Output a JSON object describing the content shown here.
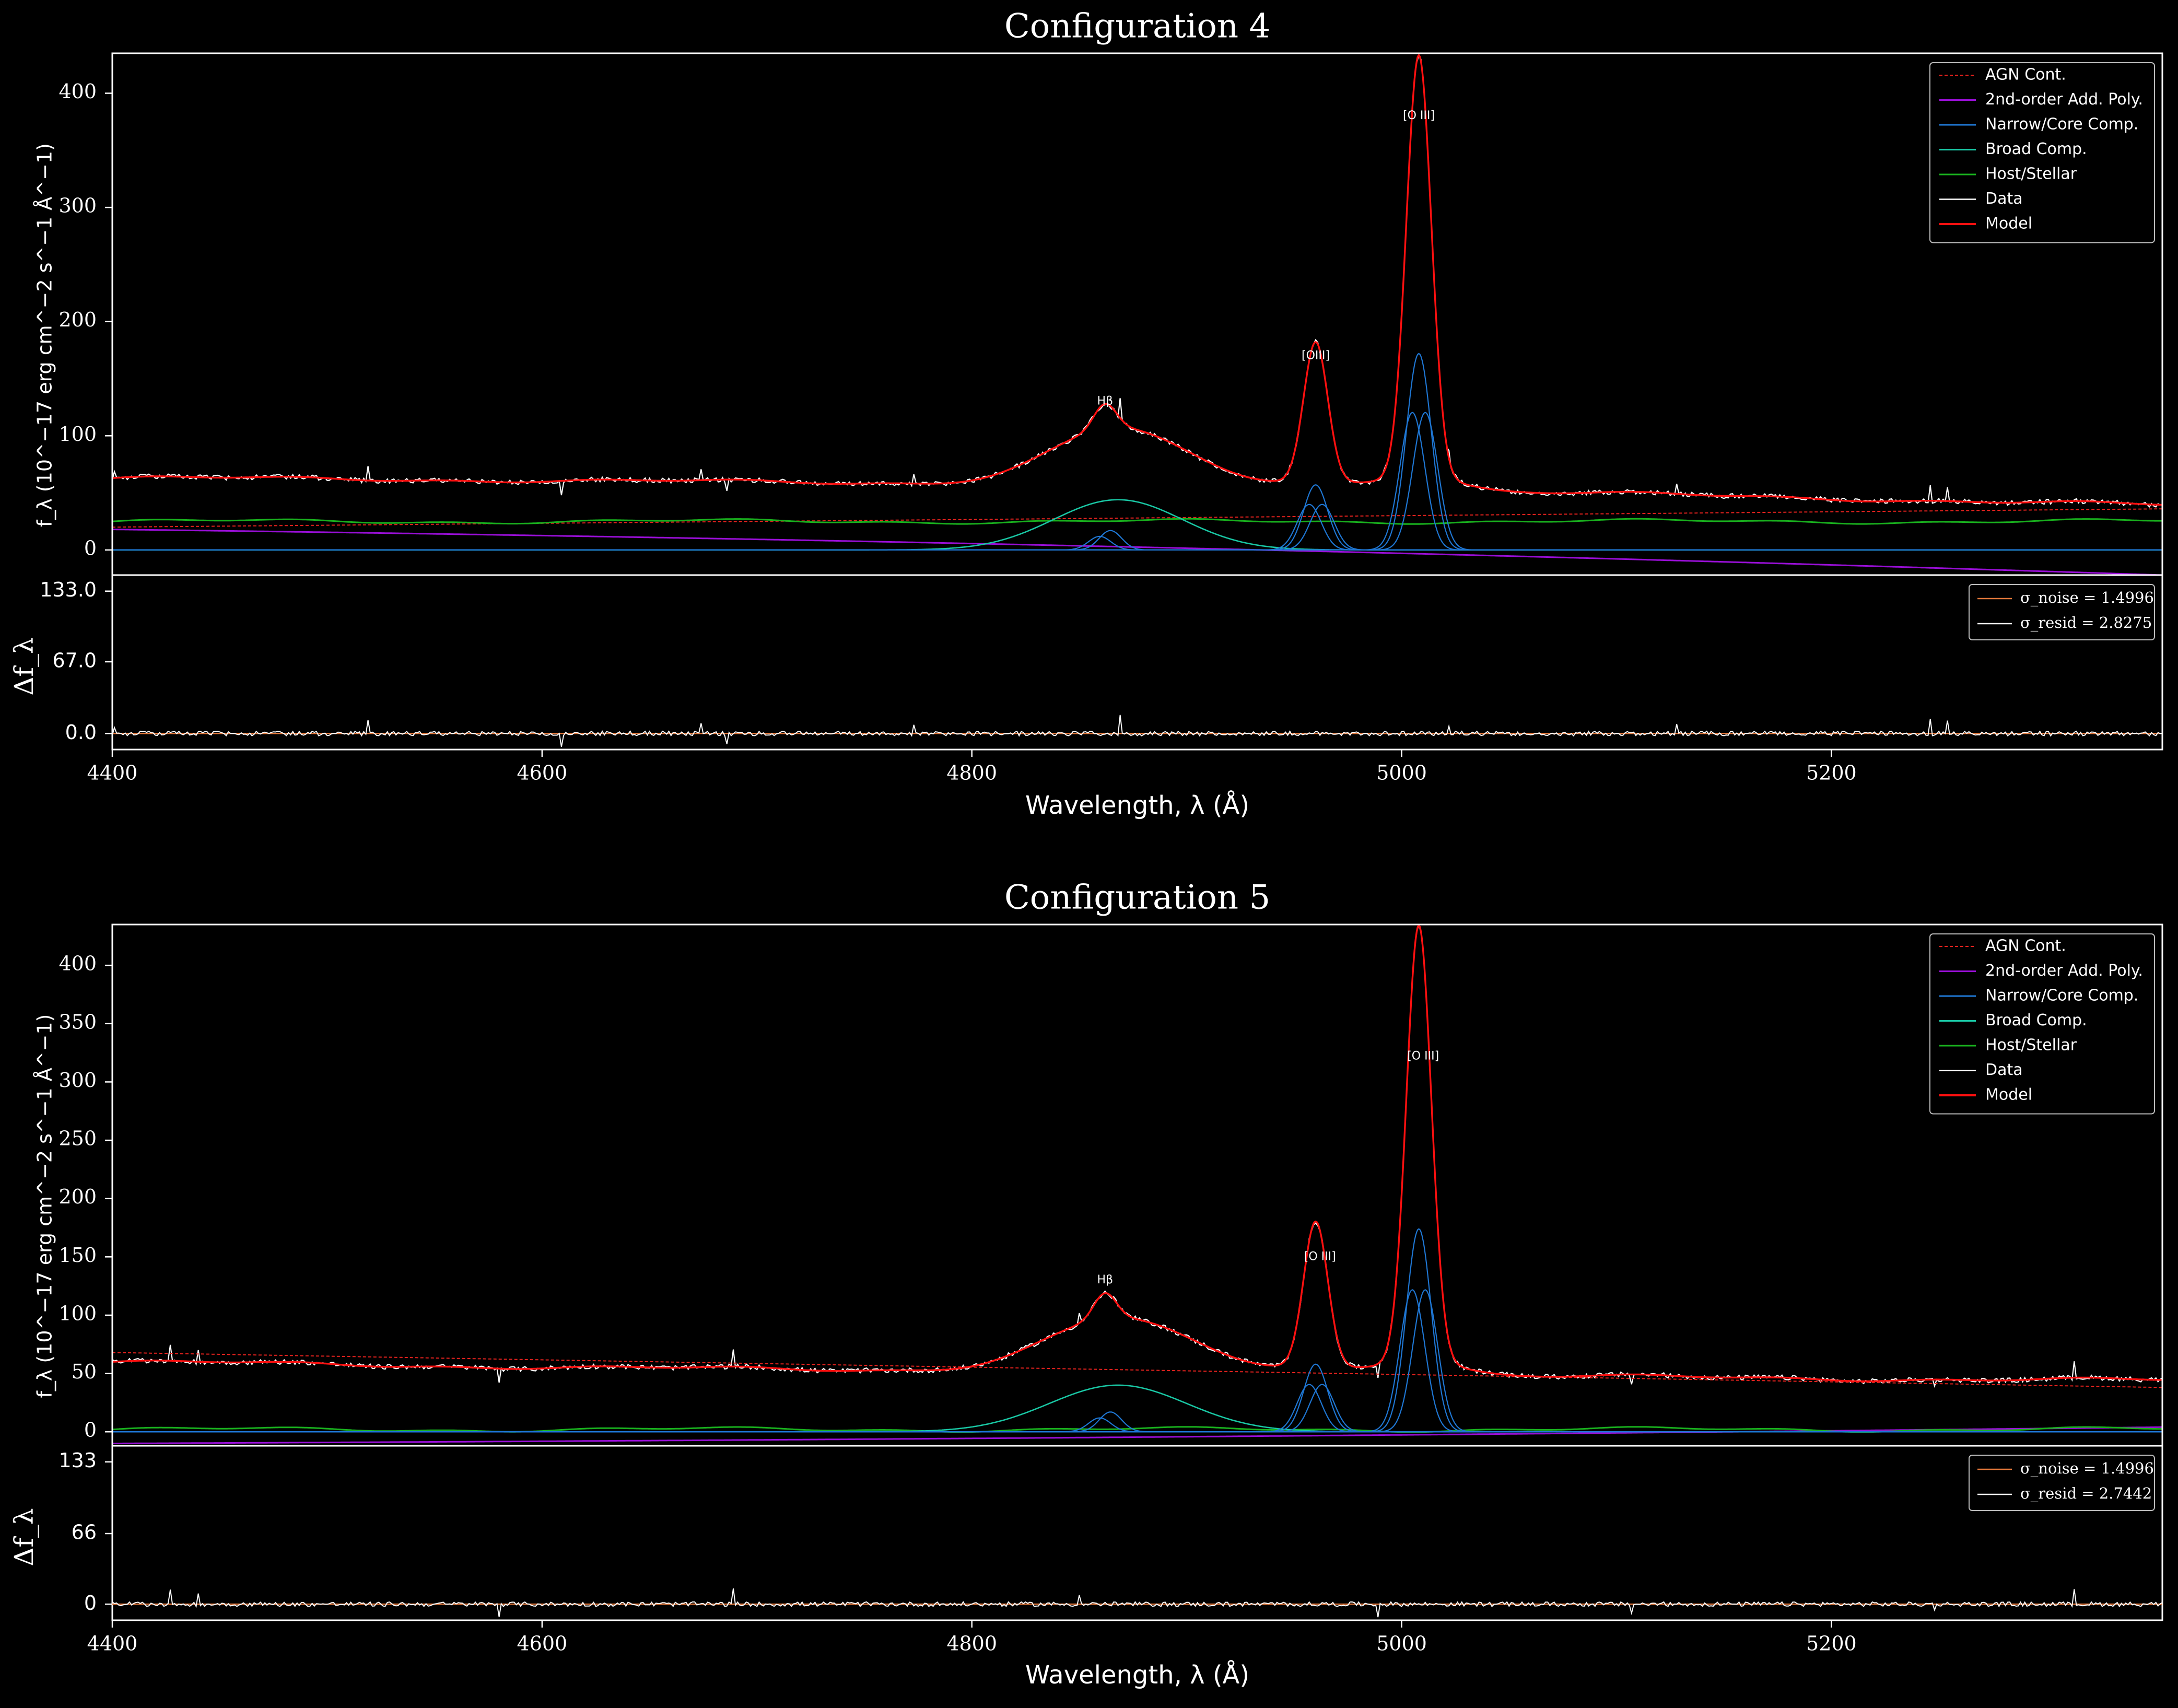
{
  "chart_data": [
    {
      "type": "line",
      "title": "Configuration 4",
      "xlabel": "Wavelength, λ (Å)",
      "ylabel": "f_λ (10^−17 erg cm^−2 s^−1 Å^−1)",
      "resid_ylabel": "Δf_λ",
      "xlim": [
        4400,
        5354
      ],
      "ylim": [
        -22,
        435
      ],
      "yticks": [
        0,
        100,
        200,
        300,
        400
      ],
      "xticks": [
        4400,
        4600,
        4800,
        5000,
        5200
      ],
      "resid_ylim": [
        -15,
        148
      ],
      "resid_yticks": [
        "0.0",
        "67.0",
        "133.0"
      ],
      "continuum": {
        "agn": [
          20,
          36
        ],
        "poly": [
          18,
          -22
        ],
        "host": 25
      },
      "lines": [
        {
          "name": "Hβ",
          "center": 4862,
          "narrow_amp": 17,
          "broad_amp": 44,
          "broad_center": 4868,
          "broad_sigma": 30
        },
        {
          "name": "[OIII]",
          "center": 4960,
          "narrow_amp": 57
        },
        {
          "name": "[O III]",
          "center": 5008,
          "narrow_amp": 172
        }
      ],
      "line_labels": [
        {
          "text": "Hβ",
          "x": 4862,
          "y": 130
        },
        {
          "text": "[OIII]",
          "x": 4960,
          "y": 170
        },
        {
          "text": "[O III]",
          "x": 5008,
          "y": 380
        }
      ],
      "legend": [
        "AGN Cont.",
        "2nd-order Add. Poly.",
        "Narrow/Core Comp.",
        "Broad Comp.",
        "Host/Stellar",
        "Data",
        "Model"
      ],
      "resid_legend": [
        "σ_noise = 1.4996",
        "σ_resid = 2.8275"
      ]
    },
    {
      "type": "line",
      "title": "Configuration 5",
      "xlabel": "Wavelength, λ (Å)",
      "ylabel": "f_λ (10^−17 erg cm^−2 s^−1 Å^−1)",
      "resid_ylabel": "Δf_λ",
      "xlim": [
        4400,
        5354
      ],
      "ylim": [
        -12,
        435
      ],
      "yticks": [
        0,
        50,
        100,
        150,
        200,
        250,
        300,
        350,
        400
      ],
      "xticks": [
        4400,
        4600,
        4800,
        5000,
        5200
      ],
      "resid_ylim": [
        -15,
        148
      ],
      "resid_yticks": [
        "0",
        "66",
        "133"
      ],
      "continuum": {
        "agn": [
          68,
          38
        ],
        "poly": [
          -10,
          4
        ],
        "host": 2
      },
      "lines": [
        {
          "name": "Hβ",
          "center": 4862,
          "narrow_amp": 17,
          "broad_amp": 40,
          "broad_center": 4868,
          "broad_sigma": 32
        },
        {
          "name": "[O III]",
          "center": 4960,
          "narrow_amp": 58
        },
        {
          "name": "[O III]",
          "center": 5008,
          "narrow_amp": 174
        }
      ],
      "line_labels": [
        {
          "text": "Hβ",
          "x": 4862,
          "y": 130
        },
        {
          "text": "[O III]",
          "x": 4962,
          "y": 150
        },
        {
          "text": "[O III]",
          "x": 5010,
          "y": 322
        }
      ],
      "legend": [
        "AGN Cont.",
        "2nd-order Add. Poly.",
        "Narrow/Core Comp.",
        "Broad Comp.",
        "Host/Stellar",
        "Data",
        "Model"
      ],
      "resid_legend": [
        "σ_noise = 1.4996",
        "σ_resid = 2.7442"
      ]
    }
  ],
  "colors": {
    "agn": "#e8221e",
    "poly": "#9a0fd8",
    "narrow": "#1f77d4",
    "broad": "#19c7a4",
    "host": "#19b11e",
    "data": "#ffffff",
    "model": "#ff1010",
    "noise": "#e0763a",
    "axes": "#ffffff"
  }
}
